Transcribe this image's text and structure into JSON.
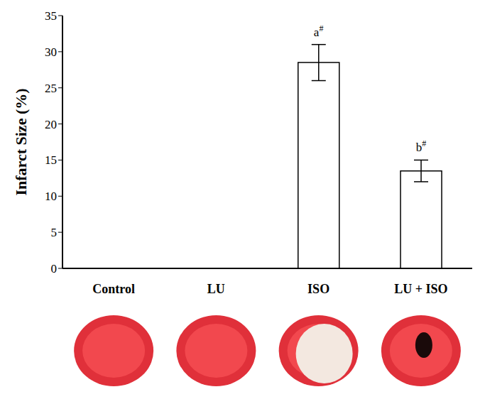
{
  "chart_data": {
    "type": "bar",
    "categories": [
      "Control",
      "LU",
      "ISO",
      "LU + ISO"
    ],
    "values": [
      0,
      0,
      28.5,
      13.5
    ],
    "errors": [
      null,
      null,
      2.5,
      1.5
    ],
    "annotations": [
      {
        "category": "ISO",
        "text": "a#"
      },
      {
        "category": "LU + ISO",
        "text": "b#"
      }
    ],
    "y_label": "Infarct Size (%)",
    "color": "#ffffff",
    "ylim": [
      0,
      35
    ],
    "yticks": [
      0,
      5,
      10,
      15,
      20,
      25,
      30,
      35
    ],
    "grid": false
  }
}
